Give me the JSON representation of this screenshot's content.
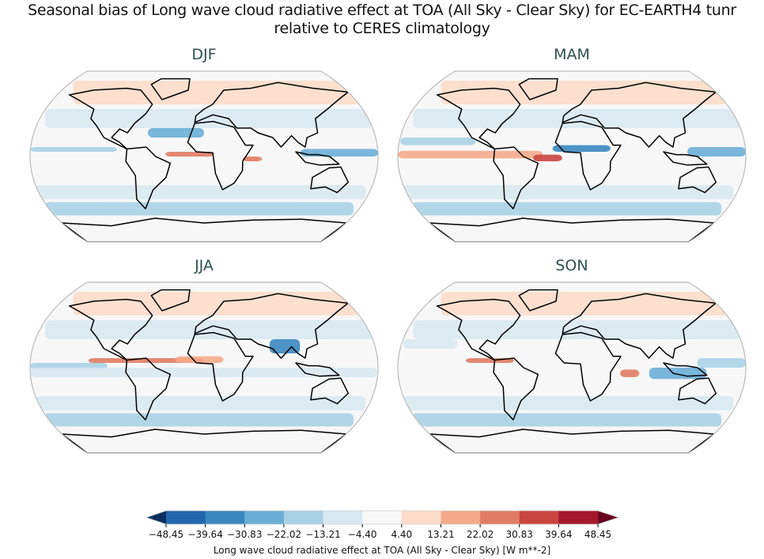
{
  "title": [
    "Seasonal bias of Long wave cloud radiative effect at TOA (All Sky - Clear Sky) for EC-EARTH4 tunr",
    "relative to CERES climatology"
  ],
  "panels": [
    {
      "label": "DJF"
    },
    {
      "label": "MAM"
    },
    {
      "label": "JJA"
    },
    {
      "label": "SON"
    }
  ],
  "colorbar": {
    "label": "Long wave cloud radiative effect at TOA (All Sky - Clear Sky) [W m**-2]",
    "ticks": [
      "−48.45",
      "−39.64",
      "−30.83",
      "−22.02",
      "−13.21",
      "−4.40",
      "4.40",
      "13.21",
      "22.02",
      "30.83",
      "39.64",
      "48.45"
    ],
    "colors": [
      "#2166ac",
      "#3a87c0",
      "#6aaed6",
      "#a9d1e6",
      "#d8e8f1",
      "#f7f7f7",
      "#fcdbc8",
      "#f4aa89",
      "#e07c63",
      "#c94540",
      "#a5172b"
    ],
    "extend_low": "#0b2e5e",
    "extend_high": "#67001f"
  }
}
